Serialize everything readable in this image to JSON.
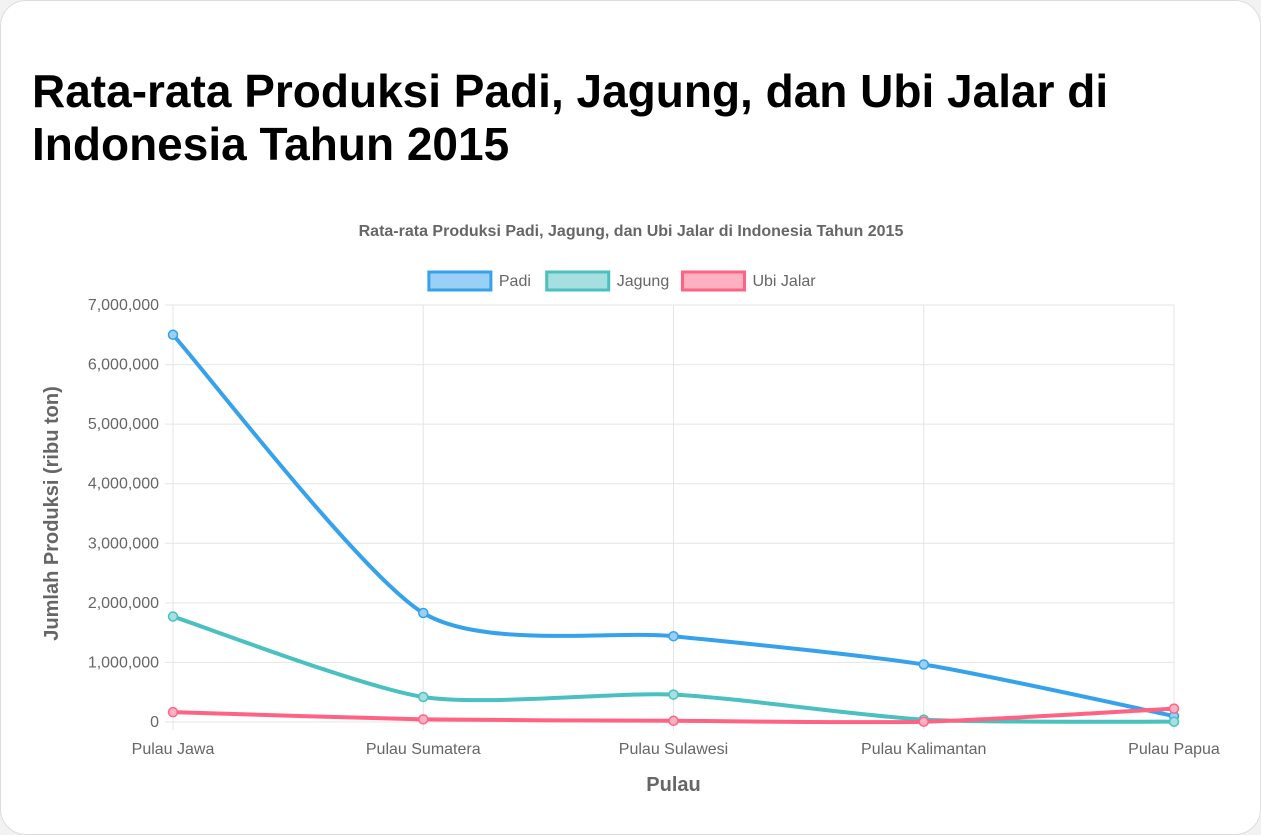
{
  "page": {
    "title": "Rata-rata Produksi Padi, Jagung, dan Ubi Jalar di Indonesia Tahun 2015"
  },
  "colors": {
    "grid": "#e5e5e5",
    "tick_text": "#666666",
    "axis_title": "#666666",
    "chart_title": "#666666"
  },
  "chart_data": {
    "type": "line",
    "title": "Rata-rata Produksi Padi, Jagung, dan Ubi Jalar di Indonesia Tahun 2015",
    "xlabel": "Pulau",
    "ylabel": "Jumlah Produksi (ribu ton)",
    "categories": [
      "Pulau Jawa",
      "Pulau Sumatera",
      "Pulau Sulawesi",
      "Pulau Kalimantan",
      "Pulau Papua"
    ],
    "ylim": [
      0,
      7000000
    ],
    "yticks": [
      0,
      1000000,
      2000000,
      3000000,
      4000000,
      5000000,
      6000000,
      7000000
    ],
    "ytick_labels": [
      "0",
      "1,000,000",
      "2,000,000",
      "3,000,000",
      "4,000,000",
      "5,000,000",
      "6,000,000",
      "7,000,000"
    ],
    "grid": true,
    "legend_position": "top",
    "series": [
      {
        "name": "Padi",
        "color": "#36a2eb",
        "fill": "#9ad0f5",
        "values": [
          6500000,
          1830000,
          1440000,
          965000,
          100000
        ]
      },
      {
        "name": "Jagung",
        "color": "#4bc0c0",
        "fill": "#a5dfdf",
        "values": [
          1770000,
          420000,
          460000,
          40000,
          5000
        ]
      },
      {
        "name": "Ubi Jalar",
        "color": "#ff6384",
        "fill": "#ffb1c1",
        "values": [
          165000,
          45000,
          20000,
          5000,
          225000
        ]
      }
    ]
  }
}
